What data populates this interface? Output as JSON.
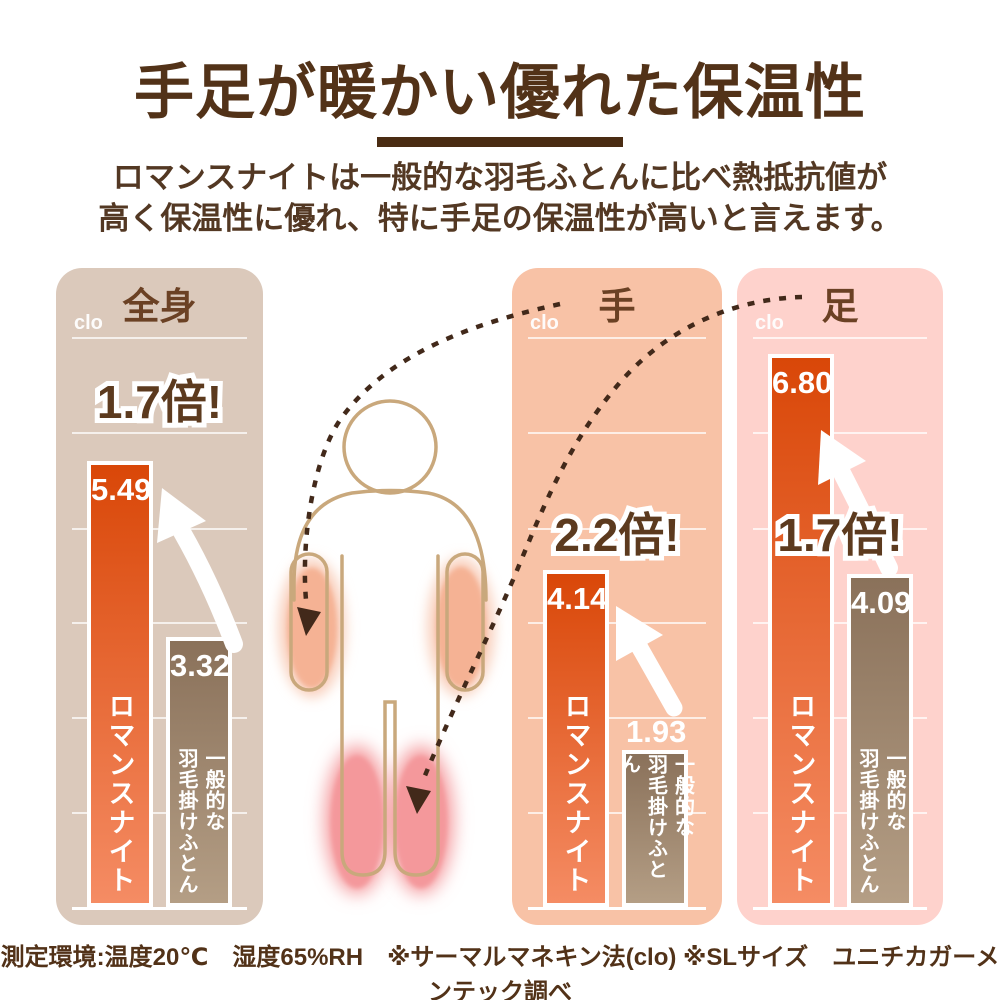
{
  "header": {
    "title": "手足が暖かい優れた保温性",
    "subtitle_line1": "ロマンスナイトは一般的な羽毛ふとんに比べ熱抵抗値が",
    "subtitle_line2": "高く保温性に優れ、特に手足の保温性が高いと言えます。"
  },
  "chart_data": {
    "type": "bar",
    "unit": "clo",
    "series": [
      {
        "name": "ロマンスナイト",
        "display": "ロマンスナイト"
      },
      {
        "name": "一般的な羽毛掛けふとん",
        "display": "一般的な\n羽毛掛けふとん"
      }
    ],
    "panels": [
      {
        "title": "全身",
        "multiplier": "1.7倍!",
        "bars": [
          {
            "series": "ロマンスナイト",
            "value": 5.49,
            "label": "5.49"
          },
          {
            "series": "一般的な羽毛掛けふとん",
            "value": 3.32,
            "label": "3.32"
          }
        ]
      },
      {
        "title": "手",
        "multiplier": "2.2倍!",
        "bars": [
          {
            "series": "ロマンスナイト",
            "value": 4.14,
            "label": "4.14"
          },
          {
            "series": "一般的な羽毛掛けふとん",
            "value": 1.93,
            "label": "1.93"
          }
        ]
      },
      {
        "title": "足",
        "multiplier": "1.7倍!",
        "bars": [
          {
            "series": "ロマンスナイト",
            "value": 6.8,
            "label": "6.80"
          },
          {
            "series": "一般的な羽毛掛けふとん",
            "value": 4.09,
            "label": "4.09"
          }
        ]
      }
    ],
    "gridlines": "decorative white horizontal lines, no numeric axis labels",
    "legend_position": "labels written vertically inside bars"
  },
  "footer": {
    "note": "測定環境:温度20℃　湿度65%RH　※サーマルマネキン法(clo) ※SLサイズ　ユニチカガーメンテック調べ"
  },
  "colors": {
    "title_brown": "#523218",
    "dark_line_brown": "#4a2c13",
    "panel_zenshin_bg": "#dbc9bb",
    "panel_te_bg": "#f8c2a6",
    "panel_ashi_bg": "#fed2cc",
    "bar_romance_top": "#d94708",
    "bar_romance_bottom": "#f58c64",
    "bar_futon_top": "#8a715a",
    "bar_futon_bottom": "#b49e85",
    "figure_outline": "#c9a87c",
    "hand_highlight": "#f5b294",
    "foot_highlight": "#f4989b"
  }
}
